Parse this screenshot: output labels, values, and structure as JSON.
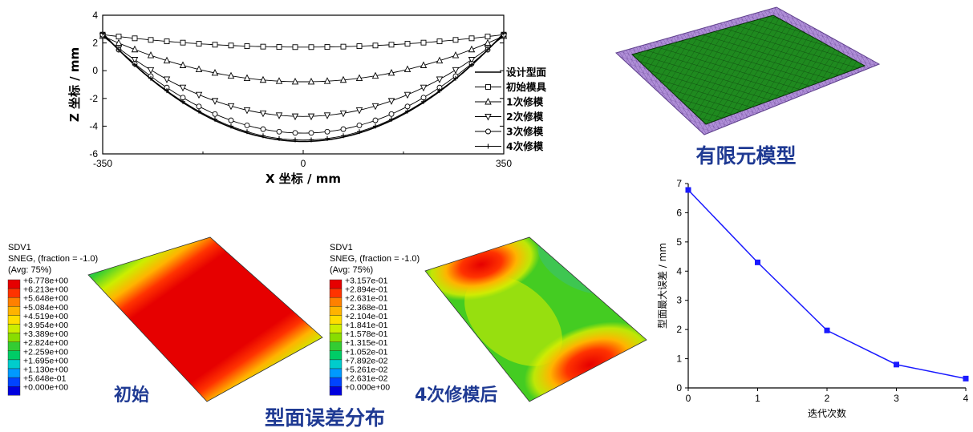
{
  "chart_data": [
    {
      "type": "line",
      "xlabel": "X 坐标 / mm",
      "ylabel": "Z 坐标 / mm",
      "xlim": [
        -350,
        350
      ],
      "ylim": [
        -6,
        4
      ],
      "xticks": [
        "-350",
        "0",
        "350"
      ],
      "yticks": [
        "4",
        "2",
        "0",
        "-2",
        "-4",
        "-6"
      ],
      "legend_position": "right",
      "series": [
        {
          "name": "设计型面",
          "marker": "none",
          "edge": 2.7,
          "center": -5.1
        },
        {
          "name": "初始模具",
          "marker": "square",
          "edge": 2.6,
          "center": 1.7
        },
        {
          "name": "1次修模",
          "marker": "triangle-up",
          "edge": 2.5,
          "center": -0.8
        },
        {
          "name": "2次修模",
          "marker": "triangle-down",
          "edge": 2.5,
          "center": -3.3
        },
        {
          "name": "3次修模",
          "marker": "circle",
          "edge": 2.6,
          "center": -4.5
        },
        {
          "name": "4次修模",
          "marker": "plus",
          "edge": 2.7,
          "center": -5.0
        }
      ]
    },
    {
      "type": "line",
      "xlabel": "迭代次数",
      "ylabel": "型面最大误差 / mm",
      "xlim": [
        0,
        4
      ],
      "ylim": [
        0,
        7
      ],
      "xticks": [
        "0",
        "1",
        "2",
        "3",
        "4"
      ],
      "yticks": [
        "0",
        "1",
        "2",
        "3",
        "4",
        "5",
        "6",
        "7"
      ],
      "color": "#1a1aff",
      "x": [
        0,
        1,
        2,
        3,
        4
      ],
      "y": [
        6.78,
        4.3,
        1.97,
        0.8,
        0.32
      ]
    }
  ],
  "fem_title": "有限元模型",
  "error_title": "型面误差分布",
  "contour_initial": {
    "header": [
      "SDV1",
      "SNEG, (fraction = -1.0)",
      "(Avg: 75%)"
    ],
    "levels": [
      "+6.778e+00",
      "+6.213e+00",
      "+5.648e+00",
      "+5.084e+00",
      "+4.519e+00",
      "+3.954e+00",
      "+3.389e+00",
      "+2.824e+00",
      "+2.259e+00",
      "+1.695e+00",
      "+1.130e+00",
      "+5.648e-01",
      "+0.000e+00"
    ],
    "caption": "初始"
  },
  "contour_final": {
    "header": [
      "SDV1",
      "SNEG, (fraction = -1.0)",
      "(Avg: 75%)"
    ],
    "levels": [
      "+3.157e-01",
      "+2.894e-01",
      "+2.631e-01",
      "+2.368e-01",
      "+2.104e-01",
      "+1.841e-01",
      "+1.578e-01",
      "+1.315e-01",
      "+1.052e-01",
      "+7.892e-02",
      "+5.261e-02",
      "+2.631e-02",
      "+0.000e+00"
    ],
    "caption": "4次修模后"
  },
  "colormap": [
    "#e60000",
    "#ff3300",
    "#ff8000",
    "#ffb300",
    "#ffdd00",
    "#ccee00",
    "#88dd00",
    "#33cc33",
    "#00cc66",
    "#00cccc",
    "#0099ff",
    "#0044ff",
    "#0000dd"
  ]
}
